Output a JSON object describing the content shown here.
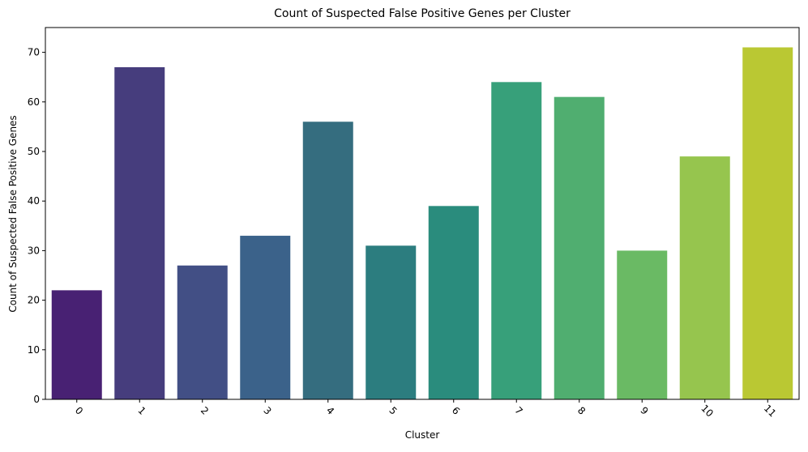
{
  "chart_data": {
    "type": "bar",
    "title": "Count of Suspected False Positive Genes per Cluster",
    "xlabel": "Cluster",
    "ylabel": "Count of Suspected False Positive Genes",
    "categories": [
      "0",
      "1",
      "2",
      "3",
      "4",
      "5",
      "6",
      "7",
      "8",
      "9",
      "10",
      "11"
    ],
    "values": [
      22,
      67,
      27,
      33,
      56,
      31,
      39,
      64,
      61,
      30,
      49,
      71
    ],
    "colors": [
      "#482173",
      "#463d7d",
      "#424f85",
      "#3b628a",
      "#356d7f",
      "#2c7d7f",
      "#2a8c7d",
      "#37a07a",
      "#50ae70",
      "#6aba64",
      "#96c54e",
      "#bac833"
    ],
    "ylim": [
      0,
      75
    ],
    "yticks": [
      0,
      10,
      20,
      30,
      40,
      50,
      60,
      70
    ],
    "xtick_rotation": 45,
    "grid": false,
    "legend": "none"
  }
}
